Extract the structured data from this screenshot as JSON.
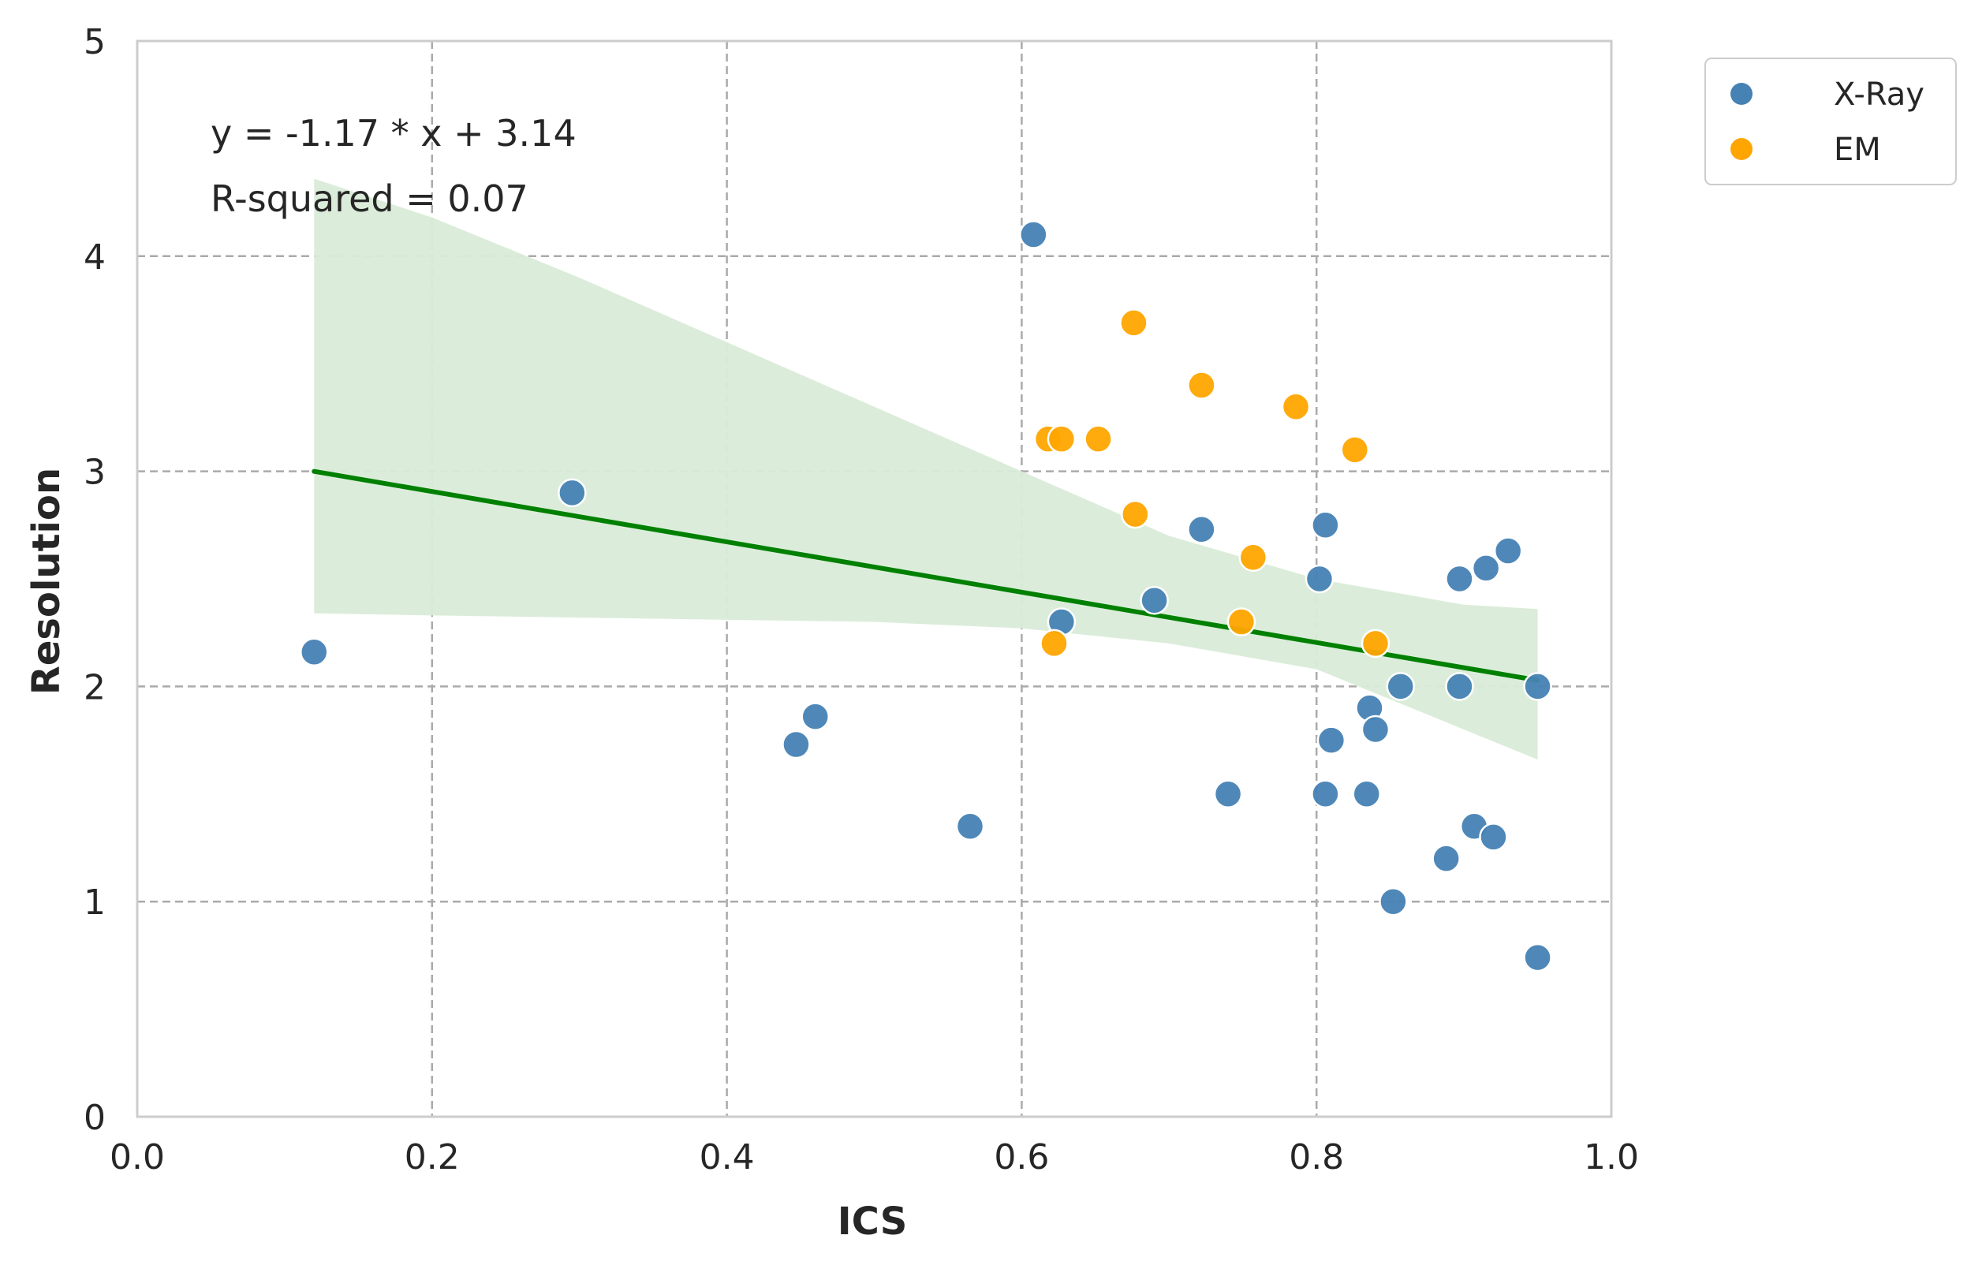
{
  "chart_data": {
    "type": "scatter",
    "title": "",
    "xlabel": "ICS",
    "ylabel": "Resolution",
    "xlim": [
      0.0,
      1.0
    ],
    "ylim": [
      0,
      5
    ],
    "x_ticks": [
      "0.0",
      "0.2",
      "0.4",
      "0.6",
      "0.8",
      "1.0"
    ],
    "y_ticks": [
      "0",
      "1",
      "2",
      "3",
      "4",
      "5"
    ],
    "grid": true,
    "legend_position": "outside-top-right",
    "colors": {
      "xray": "#4682b4",
      "em": "#ffa500",
      "regression": "#008000",
      "confidence_band": "#d9ecd8",
      "grid": "#aaaaaa",
      "frame": "#cccccc"
    },
    "series": [
      {
        "name": "X-Ray",
        "points": [
          [
            0.12,
            2.16
          ],
          [
            0.295,
            2.9
          ],
          [
            0.447,
            1.73
          ],
          [
            0.46,
            1.86
          ],
          [
            0.565,
            1.35
          ],
          [
            0.608,
            4.1
          ],
          [
            0.627,
            2.3
          ],
          [
            0.69,
            2.4
          ],
          [
            0.722,
            2.73
          ],
          [
            0.74,
            1.5
          ],
          [
            0.802,
            2.5
          ],
          [
            0.806,
            2.75
          ],
          [
            0.806,
            1.5
          ],
          [
            0.81,
            1.75
          ],
          [
            0.834,
            1.5
          ],
          [
            0.836,
            1.9
          ],
          [
            0.84,
            1.8
          ],
          [
            0.852,
            1.0
          ],
          [
            0.857,
            2.0
          ],
          [
            0.888,
            1.2
          ],
          [
            0.897,
            2.5
          ],
          [
            0.897,
            2.0
          ],
          [
            0.907,
            1.35
          ],
          [
            0.915,
            2.55
          ],
          [
            0.92,
            1.3
          ],
          [
            0.93,
            2.63
          ],
          [
            0.95,
            2.0
          ],
          [
            0.95,
            0.74
          ]
        ]
      },
      {
        "name": "EM",
        "points": [
          [
            0.618,
            3.15
          ],
          [
            0.622,
            2.2
          ],
          [
            0.627,
            3.15
          ],
          [
            0.652,
            3.15
          ],
          [
            0.676,
            3.69
          ],
          [
            0.677,
            2.8
          ],
          [
            0.722,
            3.4
          ],
          [
            0.749,
            2.3
          ],
          [
            0.757,
            2.6
          ],
          [
            0.786,
            3.3
          ],
          [
            0.826,
            3.1
          ],
          [
            0.84,
            2.2
          ]
        ]
      }
    ],
    "regression": {
      "slope": -1.17,
      "intercept": 3.14,
      "x_range": [
        0.12,
        0.95
      ],
      "equation_label": "y = -1.17 * x + 3.14",
      "r_squared_label": "R-squared = 0.07",
      "confidence_band": {
        "x": [
          0.12,
          0.2,
          0.3,
          0.4,
          0.5,
          0.6,
          0.7,
          0.8,
          0.9,
          0.95
        ],
        "upper": [
          4.36,
          4.18,
          3.9,
          3.6,
          3.3,
          3.0,
          2.7,
          2.5,
          2.38,
          2.36
        ],
        "lower": [
          2.34,
          2.33,
          2.32,
          2.31,
          2.3,
          2.27,
          2.2,
          2.08,
          1.8,
          1.66
        ]
      }
    }
  }
}
